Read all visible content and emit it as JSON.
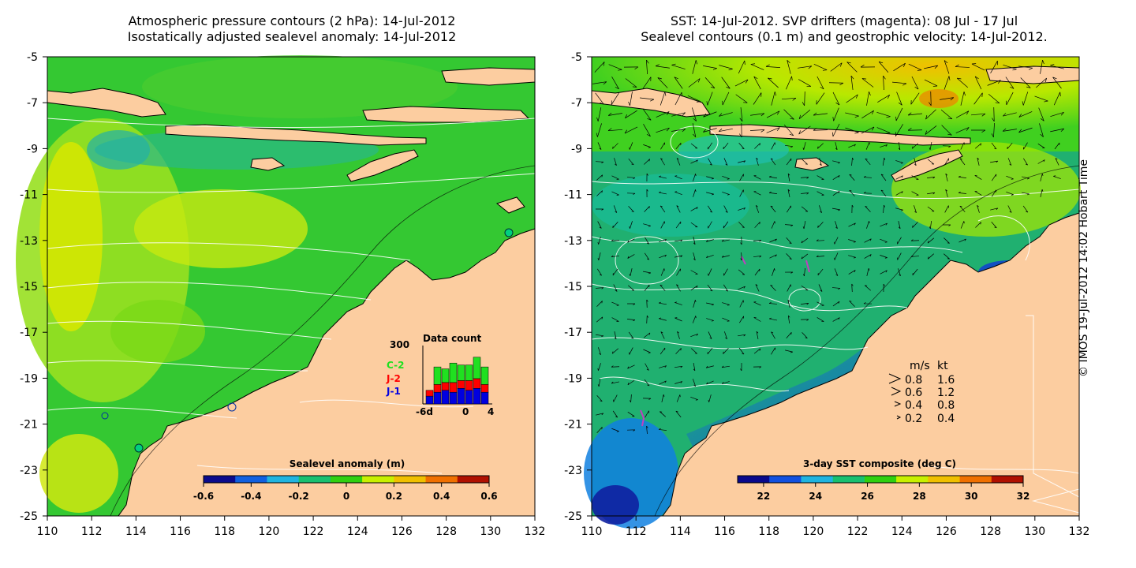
{
  "left_panel": {
    "title_line1": "Atmospheric pressure contours (2 hPa): 14-Jul-2012",
    "title_line2": "Isostatically adjusted sealevel anomaly: 14-Jul-2012",
    "colorbar": {
      "label": "Sealevel anomaly (m)",
      "ticks": [
        "-0.6",
        "-0.4",
        "-0.2",
        "0",
        "0.2",
        "0.4",
        "0.6"
      ],
      "range": [
        -0.6,
        0.6
      ],
      "colors": [
        "#0a0a8c",
        "#1060e0",
        "#20b4e0",
        "#18c070",
        "#30d010",
        "#c8f000",
        "#f0c000",
        "#f07000",
        "#b01000"
      ]
    },
    "inset": {
      "title": "Data count",
      "ymax_label": "300",
      "xticks": [
        "-6d",
        "0",
        "4"
      ],
      "legend": [
        {
          "label": "C-2",
          "color": "#20e020"
        },
        {
          "label": "J-2",
          "color": "#ff0000"
        },
        {
          "label": "J-1",
          "color": "#0000e0"
        }
      ],
      "ymax": 300,
      "bars": [
        {
          "j1": 40,
          "j2": 30,
          "c2": 0
        },
        {
          "j1": 60,
          "j2": 40,
          "c2": 90
        },
        {
          "j1": 70,
          "j2": 40,
          "c2": 70
        },
        {
          "j1": 60,
          "j2": 50,
          "c2": 100
        },
        {
          "j1": 80,
          "j2": 40,
          "c2": 80
        },
        {
          "j1": 70,
          "j2": 50,
          "c2": 80
        },
        {
          "j1": 80,
          "j2": 50,
          "c2": 110
        },
        {
          "j1": 60,
          "j2": 40,
          "c2": 90
        }
      ]
    }
  },
  "right_panel": {
    "title_line1": "SST: 14-Jul-2012. SVP drifters (magenta): 08 Jul - 17 Jul",
    "title_line2": "Sealevel contours (0.1 m) and geostrophic velocity: 14-Jul-2012.",
    "colorbar": {
      "label": "3-day SST composite (deg C)",
      "ticks": [
        "22",
        "24",
        "26",
        "28",
        "30",
        "32"
      ],
      "range": [
        21,
        32
      ],
      "colors": [
        "#08088c",
        "#1050e0",
        "#20b4e0",
        "#18c070",
        "#30d010",
        "#c8f000",
        "#f0c000",
        "#f07000",
        "#b01000"
      ]
    },
    "velocity_key": {
      "header_ms": "m/s",
      "header_kt": "kt",
      "rows": [
        {
          "ms": "0.8",
          "kt": "1.6"
        },
        {
          "ms": "0.6",
          "kt": "1.2"
        },
        {
          "ms": "0.4",
          "kt": "0.8"
        },
        {
          "ms": "0.2",
          "kt": "0.4"
        }
      ]
    }
  },
  "axes": {
    "lon_ticks": [
      "110",
      "112",
      "114",
      "116",
      "118",
      "120",
      "122",
      "124",
      "126",
      "128",
      "130",
      "132"
    ],
    "lat_ticks": [
      "-5",
      "-7",
      "-9",
      "-11",
      "-13",
      "-15",
      "-17",
      "-19",
      "-21",
      "-23",
      "-25"
    ],
    "lon_range": [
      110,
      132
    ],
    "lat_range": [
      -25,
      -5
    ]
  },
  "credit": "© IMOS 19-Jul-2012 14:02 Hobart Time"
}
